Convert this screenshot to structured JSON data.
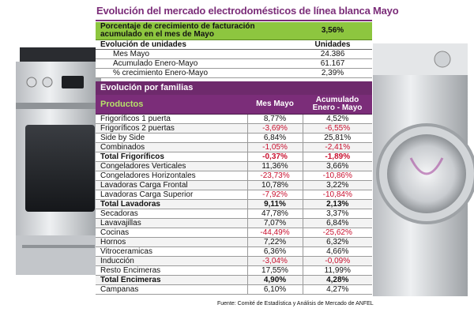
{
  "title": "Evolución del mercado electrodomésticos de línea blanca Mayo",
  "summary": {
    "growth_label": "Porcentaje de crecimiento de facturación acumulado en el mes de Mayo",
    "growth_value": "3,56%",
    "units_header": "Evolución de unidades",
    "units_col": "Unidades",
    "rows": [
      {
        "label": "Mes Mayo",
        "value": "24.386"
      },
      {
        "label": "Acumulado Enero-Mayo",
        "value": "61.167"
      },
      {
        "label": "% crecimiento Enero-Mayo",
        "value": "2,39%"
      }
    ]
  },
  "families": {
    "header": "Evolución por familias",
    "col_products": "Productos",
    "col_month": "Mes Mayo",
    "col_ytd": "Acumulado Enero - Mayo",
    "rows": [
      {
        "name": "Frigoríficos 1 puerta",
        "month": "8,77%",
        "ytd": "4,52%",
        "total": false
      },
      {
        "name": "Frigoríficos 2 puertas",
        "month": "-3,69%",
        "ytd": "-6,55%",
        "total": false
      },
      {
        "name": "Side by Side",
        "month": "6,84%",
        "ytd": "25,81%",
        "total": false
      },
      {
        "name": "Combinados",
        "month": "-1,05%",
        "ytd": "-2,41%",
        "total": false
      },
      {
        "name": "Total Frigoríficos",
        "month": "-0,37%",
        "ytd": "-1,89%",
        "total": true
      },
      {
        "name": "Congeladores Verticales",
        "month": "11,36%",
        "ytd": "3,66%",
        "total": false
      },
      {
        "name": "Congeladores Horizontales",
        "month": "-23,73%",
        "ytd": "-10,86%",
        "total": false
      },
      {
        "name": "Lavadoras Carga Frontal",
        "month": "10,78%",
        "ytd": "3,22%",
        "total": false
      },
      {
        "name": "Lavadoras Carga Superior",
        "month": "-7,92%",
        "ytd": "-10,84%",
        "total": false
      },
      {
        "name": "Total Lavadoras",
        "month": "9,11%",
        "ytd": "2,13%",
        "total": true
      },
      {
        "name": "Secadoras",
        "month": "47,78%",
        "ytd": "3,37%",
        "total": false
      },
      {
        "name": "Lavavajillas",
        "month": "7,07%",
        "ytd": "6,84%",
        "total": false
      },
      {
        "name": "Cocinas",
        "month": "-44,49%",
        "ytd": "-25,62%",
        "total": false
      },
      {
        "name": "Hornos",
        "month": "7,22%",
        "ytd": "6,32%",
        "total": false
      },
      {
        "name": "Vitroceramicas",
        "month": "6,36%",
        "ytd": "4,66%",
        "total": false
      },
      {
        "name": "Inducción",
        "month": "-3,04%",
        "ytd": "-0,09%",
        "total": false
      },
      {
        "name": "Resto Encimeras",
        "month": "17,55%",
        "ytd": "11,99%",
        "total": false
      },
      {
        "name": "Total Encimeras",
        "month": "4,90%",
        "ytd": "4,28%",
        "total": true
      },
      {
        "name": "Campanas",
        "month": "6,10%",
        "ytd": "4,27%",
        "total": false
      }
    ]
  },
  "source": "Fuente: Comité de Estadística y Análisis de Mercado de ANFEL",
  "colors": {
    "title": "#7b2d79",
    "green": "#8dc63f",
    "purple": "#7b2d79",
    "negative": "#c8102e"
  }
}
